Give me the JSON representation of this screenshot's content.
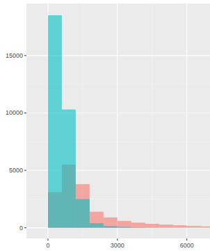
{
  "chart_data": {
    "type": "histogram",
    "bins": [
      0,
      600,
      1200,
      1800,
      2400,
      3000,
      3600,
      4200,
      4800,
      5400,
      6000,
      6600,
      7200
    ],
    "series": [
      {
        "color": "#F8766D",
        "values": [
          3100,
          5500,
          3800,
          1400,
          900,
          600,
          450,
          350,
          280,
          220,
          170,
          120
        ]
      },
      {
        "color": "#00BFC4",
        "values": [
          18500,
          10300,
          2500,
          400,
          150,
          80,
          40,
          20,
          10,
          5,
          0,
          0
        ]
      }
    ],
    "xlim": [
      -930,
      7000
    ],
    "xticks": [
      0,
      3000,
      6000
    ],
    "ylim": [
      -930,
      19530
    ],
    "yticks": [
      0,
      5000,
      10000,
      15000
    ],
    "grid": true
  }
}
